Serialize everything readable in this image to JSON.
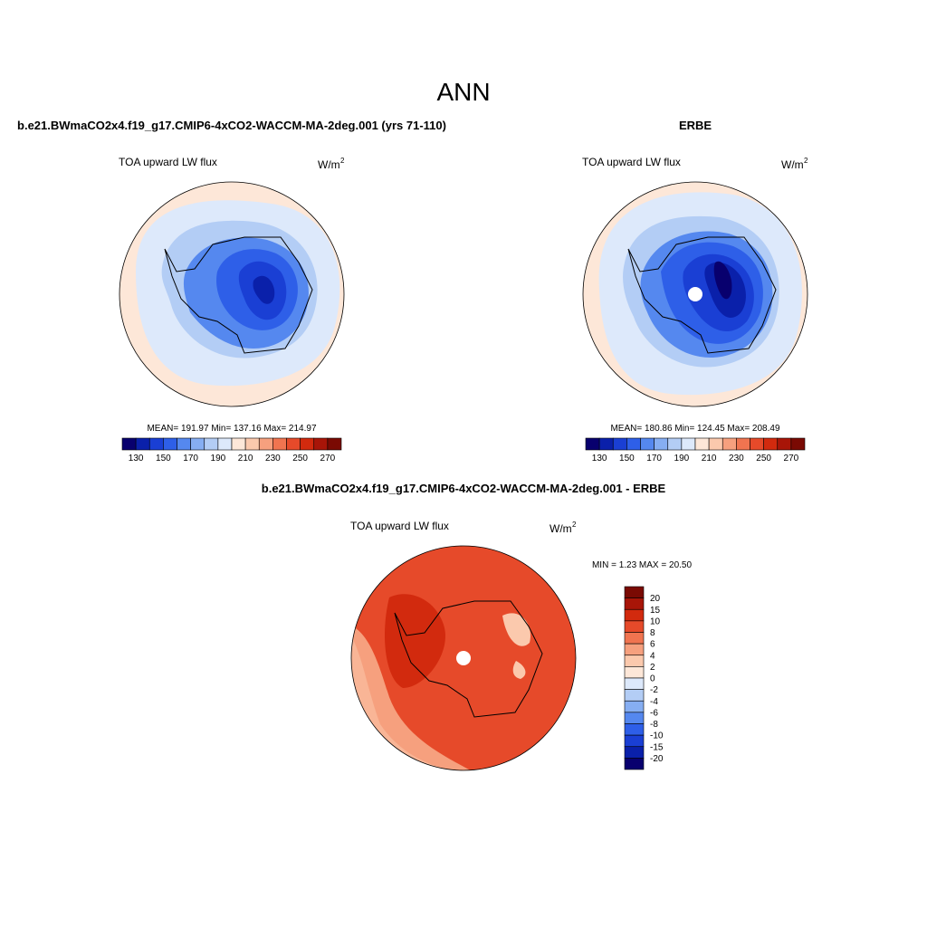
{
  "header": {
    "title": "ANN"
  },
  "panels": [
    {
      "title": "b.e21.BWmaCO2x4.f19_g17.CMIP6-4xCO2-WACCM-MA-2deg.001 (yrs 71-110)",
      "variable": "TOA upward LW flux",
      "units": {
        "base": "W/m",
        "sup": "2"
      },
      "stats": "MEAN= 191.97  Min= 137.16  Max= 214.97"
    },
    {
      "title": "ERBE",
      "variable": "TOA upward LW flux",
      "units": {
        "base": "W/m",
        "sup": "2"
      },
      "stats": "MEAN= 180.86  Min= 124.45  Max= 208.49"
    },
    {
      "title": "b.e21.BWmaCO2x4.f19_g17.CMIP6-4xCO2-WACCM-MA-2deg.001 - ERBE",
      "variable": "TOA upward LW flux",
      "units": {
        "base": "W/m",
        "sup": "2"
      },
      "stats": "MIN =   1.23 MAX =  20.50"
    }
  ],
  "colorbar_main": {
    "labels": [
      130,
      150,
      170,
      190,
      210,
      230,
      250,
      270
    ],
    "colors": [
      "#08006e",
      "#0a20aa",
      "#1a3fd4",
      "#2e5fe8",
      "#5588ef",
      "#86aef2",
      "#b3cdf5",
      "#dde9fb",
      "#fde7d8",
      "#fbc9ad",
      "#f6a07e",
      "#f07450",
      "#e64a2a",
      "#d22a0e",
      "#a81508",
      "#7a0a03"
    ]
  },
  "colorbar_diff": {
    "labels": [
      20,
      15,
      10,
      8,
      6,
      4,
      2,
      0,
      -2,
      -4,
      -6,
      -8,
      -10,
      -15,
      -20
    ],
    "colors": [
      "#7a0a03",
      "#a81508",
      "#d22a0e",
      "#e64a2a",
      "#f07450",
      "#f6a07e",
      "#fbc9ad",
      "#fde7d8",
      "#dde9fb",
      "#b3cdf5",
      "#86aef2",
      "#5588ef",
      "#2e5fe8",
      "#1a3fd4",
      "#0a20aa",
      "#08006e"
    ]
  }
}
